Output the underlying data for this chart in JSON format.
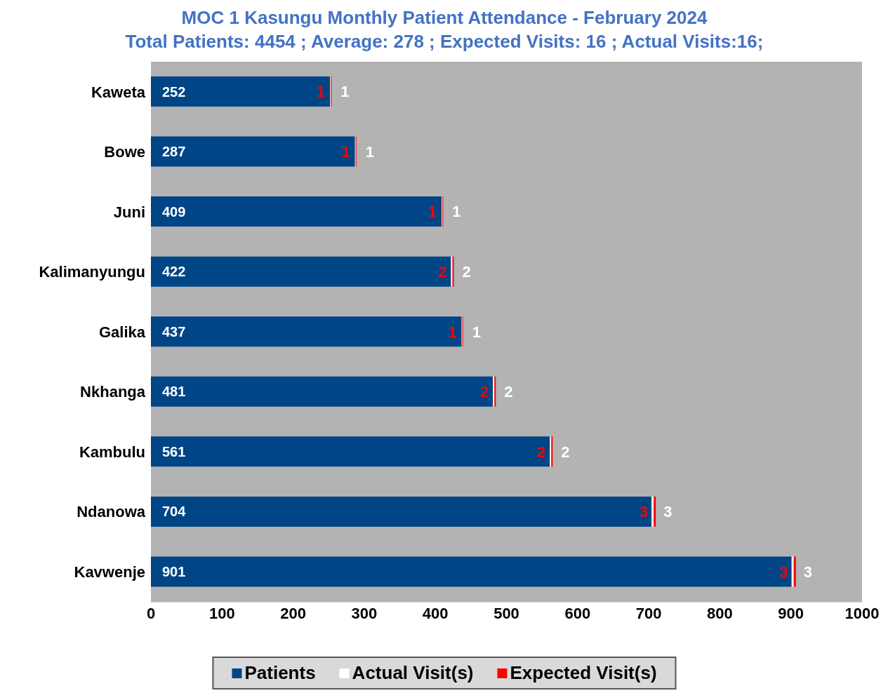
{
  "chart_data": {
    "type": "bar",
    "orientation": "horizontal",
    "stacked": true,
    "title": "MOC 1 Kasungu Monthly Patient Attendance - February 2024",
    "subtitle": "Total Patients: 4454 ; Average: 278 ; Expected Visits: 16 ; Actual Visits:16;",
    "categories": [
      "Kaweta",
      "Bowe",
      "Juni",
      "Kalimanyungu",
      "Galika",
      "Nkhanga",
      "Kambulu",
      "Ndanowa",
      "Kavwenje"
    ],
    "series": [
      {
        "name": "Patients",
        "color": "#004586",
        "values": [
          252,
          287,
          409,
          422,
          437,
          481,
          561,
          704,
          901
        ]
      },
      {
        "name": "Actual Visit(s)",
        "color": "#ffffff",
        "values": [
          1,
          1,
          1,
          2,
          1,
          2,
          2,
          3,
          3
        ]
      },
      {
        "name": "Expected Visit(s)",
        "color": "#ff0000",
        "values": [
          1,
          1,
          1,
          2,
          1,
          2,
          2,
          3,
          3
        ]
      }
    ],
    "xlim": [
      0,
      1000
    ],
    "xticks": [
      0,
      100,
      200,
      300,
      400,
      500,
      600,
      700,
      800,
      900,
      1000
    ],
    "grid": false,
    "legend": "bottom",
    "data_labels": true
  }
}
